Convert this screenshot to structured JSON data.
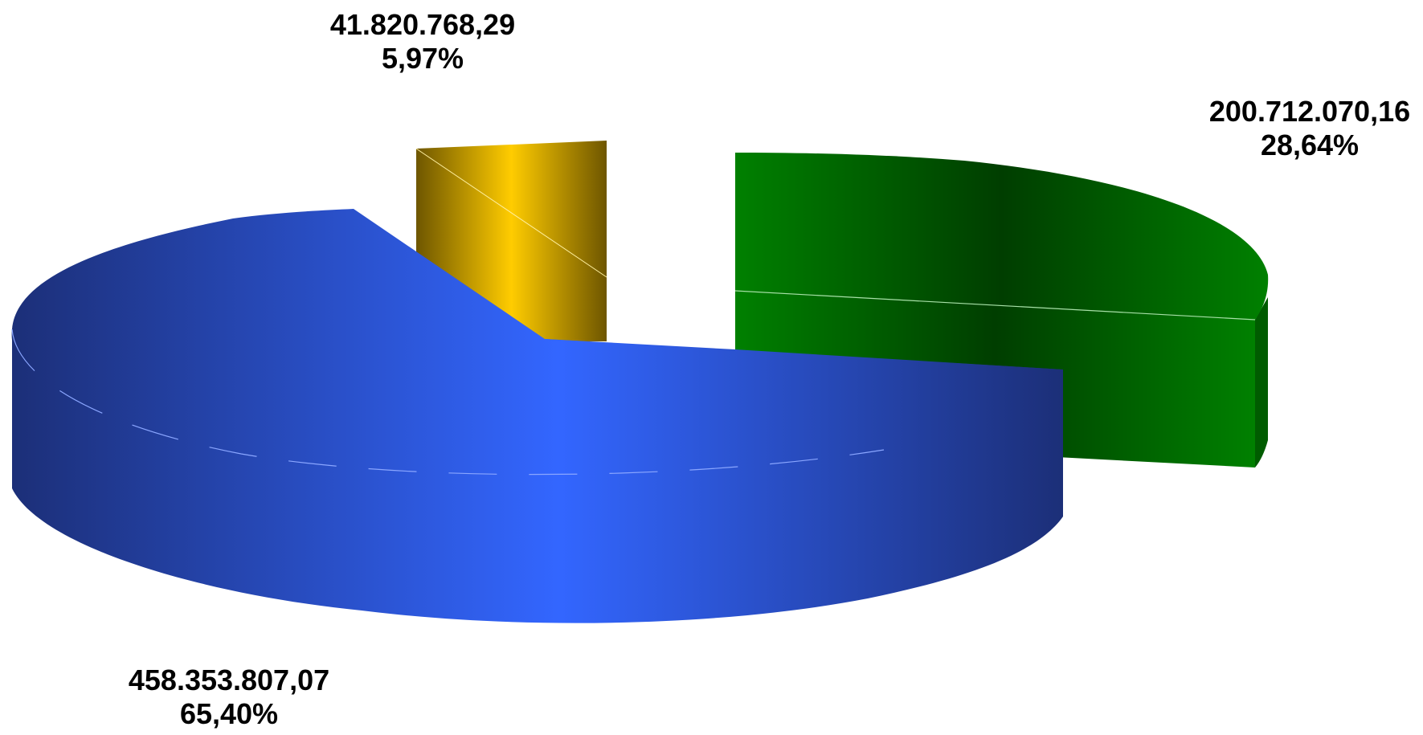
{
  "chart_data": {
    "type": "pie",
    "style": "3d-exploded",
    "title": "",
    "grid": false,
    "legend": "none",
    "slices": [
      {
        "value": 458353807.07,
        "value_label": "458.353.807,07",
        "percent_label": "65,40%",
        "color": "#3366ff"
      },
      {
        "value": 41820768.29,
        "value_label": "41.820.768,29",
        "percent_label": "5,97%",
        "color": "#ffcc00"
      },
      {
        "value": 200712070.16,
        "value_label": "200.712.070,16",
        "percent_label": "28,64%",
        "color": "#008000"
      }
    ]
  }
}
